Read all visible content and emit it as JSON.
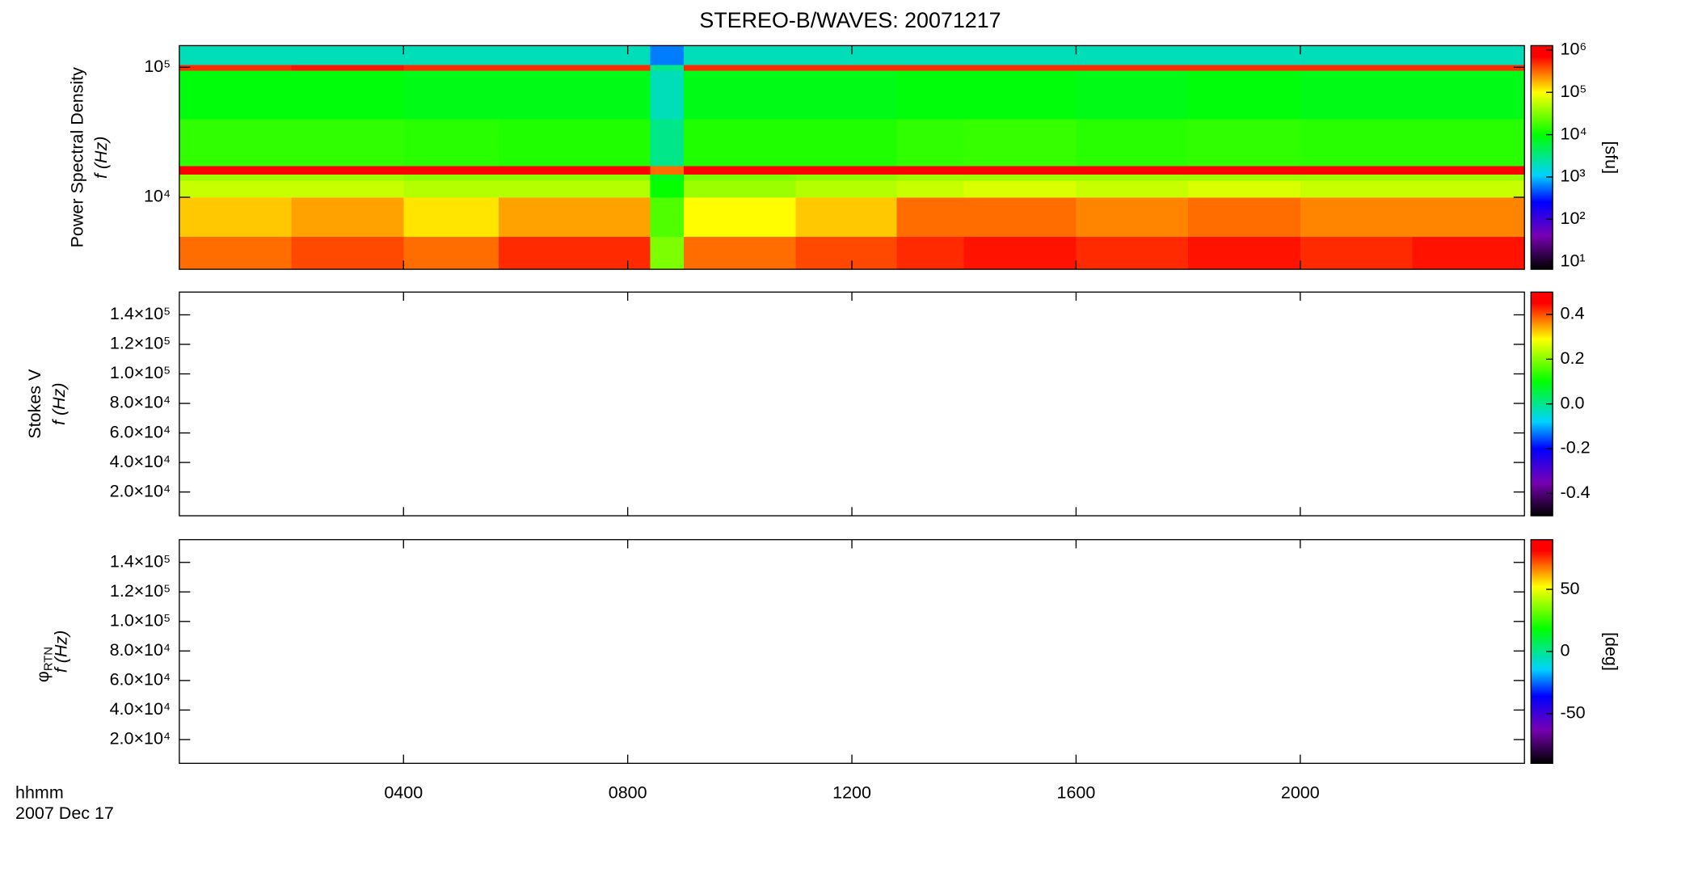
{
  "chart_data": {
    "title": "STEREO-B/WAVES: 20071217",
    "colormap": [
      [
        0,
        "#000000"
      ],
      [
        0.15,
        "#7800b4"
      ],
      [
        0.3,
        "#0000ff"
      ],
      [
        0.42,
        "#00d2ff"
      ],
      [
        0.6,
        "#00ff00"
      ],
      [
        0.79,
        "#ffff00"
      ],
      [
        0.95,
        "#ff0000"
      ],
      [
        1,
        "#ff0000"
      ]
    ],
    "x": {
      "xlim": [
        0,
        24
      ],
      "xticks": [
        {
          "value": 4,
          "label": "0400"
        },
        {
          "value": 8,
          "label": "0800"
        },
        {
          "value": 12,
          "label": "1200"
        },
        {
          "value": 16,
          "label": "1600"
        },
        {
          "value": 20,
          "label": "2000"
        }
      ],
      "label": "hhmm",
      "date": "2007 Dec 17"
    },
    "panels": [
      {
        "type": "spectrogram",
        "ylabel": [
          "Power Spectral Density",
          "f (Hz)"
        ],
        "ylog": true,
        "ylim": [
          2790,
          147000
        ],
        "yticks": [
          {
            "value": 10000,
            "label": "10⁴"
          },
          {
            "value": 100000,
            "label": "10⁵"
          }
        ],
        "xedges": [
          0,
          2,
          4,
          5.7,
          8.4,
          9.0,
          11,
          12.8,
          14,
          16,
          18,
          20,
          22,
          24
        ],
        "yedges": [
          2790,
          5000,
          10000,
          13500,
          15000,
          17500,
          40000,
          95000,
          105000,
          147000
        ],
        "z": [
          [
            300000,
            400000,
            300000,
            500000,
            30000,
            300000,
            400000,
            500000,
            600000,
            500000,
            600000,
            500000,
            600000
          ],
          [
            150000,
            200000,
            120000,
            200000,
            20000,
            100000,
            150000,
            300000,
            300000,
            250000,
            300000,
            250000,
            250000
          ],
          [
            60000,
            60000,
            50000,
            50000,
            10000,
            40000,
            50000,
            60000,
            70000,
            60000,
            70000,
            60000,
            60000
          ],
          [
            40000,
            40000,
            35000,
            35000,
            8000,
            30000,
            35000,
            40000,
            40000,
            40000,
            40000,
            40000,
            40000
          ],
          [
            800000,
            800000,
            800000,
            800000,
            300000,
            800000,
            800000,
            800000,
            800000,
            800000,
            800000,
            800000,
            800000
          ],
          [
            15000,
            15000,
            14000,
            13000,
            3000,
            13000,
            13000,
            15000,
            16000,
            14000,
            15000,
            14000,
            14000
          ],
          [
            9000,
            9000,
            8000,
            8000,
            2000,
            8000,
            8000,
            9000,
            9000,
            8000,
            9000,
            8000,
            8000
          ],
          [
            500000,
            600000,
            500000,
            500000,
            3000,
            500000,
            500000,
            500000,
            500000,
            500000,
            500000,
            500000,
            500000
          ],
          [
            2000,
            2000,
            2000,
            2000,
            600,
            2000,
            2000,
            2000,
            2000,
            2000,
            2000,
            2000,
            2000
          ]
        ],
        "colorbar": {
          "log": true,
          "zlim": [
            6.6,
            1270000
          ],
          "label": "[sfu]",
          "ticks": [
            {
              "value": 10,
              "label": "10¹"
            },
            {
              "value": 100,
              "label": "10²"
            },
            {
              "value": 1000,
              "label": "10³"
            },
            {
              "value": 10000,
              "label": "10⁴"
            },
            {
              "value": 100000,
              "label": "10⁵"
            },
            {
              "value": 1000000,
              "label": "10⁶"
            }
          ]
        }
      },
      {
        "type": "spectrogram",
        "ylabel": [
          "Stokes V",
          "f (Hz)"
        ],
        "ylog": false,
        "ylim": [
          3900,
          155400
        ],
        "yticks": [
          {
            "value": 20000,
            "label": "2.0×10⁴"
          },
          {
            "value": 40000,
            "label": "4.0×10⁴"
          },
          {
            "value": 60000,
            "label": "6.0×10⁴"
          },
          {
            "value": 80000,
            "label": "8.0×10⁴"
          },
          {
            "value": 100000,
            "label": "1.0×10⁵"
          },
          {
            "value": 120000,
            "label": "1.2×10⁵"
          },
          {
            "value": 140000,
            "label": "1.4×10⁵"
          }
        ],
        "colorbar": {
          "log": false,
          "zlim": [
            -0.5,
            0.5
          ],
          "ticks": [
            {
              "value": -0.4,
              "label": "-0.4"
            },
            {
              "value": -0.2,
              "label": "-0.2"
            },
            {
              "value": 0,
              "label": "0.0"
            },
            {
              "value": 0.2,
              "label": "0.2"
            },
            {
              "value": 0.4,
              "label": "0.4"
            }
          ]
        }
      },
      {
        "type": "spectrogram",
        "ylabel": [
          "φ",
          "RTN",
          "f (Hz)"
        ],
        "ylog": false,
        "ylim": [
          3900,
          155400
        ],
        "yticks": [
          {
            "value": 20000,
            "label": "2.0×10⁴"
          },
          {
            "value": 40000,
            "label": "4.0×10⁴"
          },
          {
            "value": 60000,
            "label": "6.0×10⁴"
          },
          {
            "value": 80000,
            "label": "8.0×10⁴"
          },
          {
            "value": 100000,
            "label": "1.0×10⁵"
          },
          {
            "value": 120000,
            "label": "1.2×10⁵"
          },
          {
            "value": 140000,
            "label": "1.4×10⁵"
          }
        ],
        "colorbar": {
          "log": false,
          "zlim": [
            -90,
            90
          ],
          "label": "[deg]",
          "ticks": [
            -50,
            0,
            50
          ]
        }
      }
    ]
  }
}
